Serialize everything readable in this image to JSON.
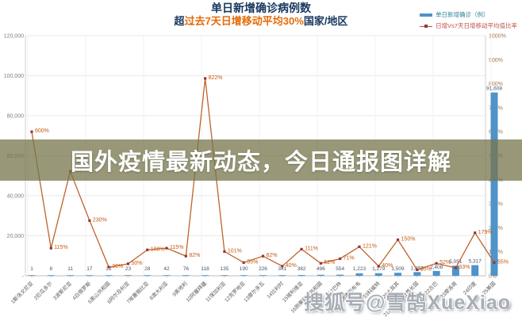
{
  "header": {
    "title": "单日新增确诊病例数",
    "subtitle_prefix": "超",
    "subtitle_highlight": "过去7天日增移动平均30%",
    "subtitle_suffix": "国家/地区"
  },
  "legend": {
    "bar_series_label": "单日新增确诊（例）",
    "line_series_label": "日增Vs7天日增移动平均值比率"
  },
  "overlay_banner": "国外疫情最新动态，今日通报图详解",
  "watermark": "搜狐号@雪鹄XueXiao",
  "colors": {
    "bar": "#4f93c8",
    "line": "#c0622b",
    "marker": "#963634",
    "pct_label": "#c55a11",
    "bar_label": "#44546a",
    "left_axis_label": "#7f7f7f",
    "right_axis_label": "#9c7a4a",
    "grid": "#e9e9e9",
    "axis": "#d0d0d0",
    "category_label": "#595959"
  },
  "chart_data": {
    "type": "combo-bar-line",
    "title": "单日新增确诊病例数",
    "subtitle": "超过去7天日增移动平均30%国家/地区",
    "legend_entries": [
      "单日新增确诊（例）",
      "日增Vs7天日增移动平均值比率"
    ],
    "left_axis": {
      "label_ticks": [
        "120,000",
        "100,000",
        "80,000",
        "60,000",
        "40,000",
        "20,000",
        "-"
      ],
      "min": 0,
      "max": 120000
    },
    "right_axis": {
      "label_ticks": [
        "1000%",
        "900%",
        "800%",
        "700%",
        "600%",
        "500%",
        "400%",
        "300%",
        "200%",
        "100%",
        "0%"
      ],
      "min": 0,
      "max": 1000
    },
    "grid": "horizontal-and-faint-vertical",
    "legend_position": "top-right",
    "categories": [
      "1斯洛文尼亚",
      "2厄瓜多尔",
      "3波斯尼亚",
      "4白俄罗斯",
      "5黑山共和国",
      "6阿尔及利亚",
      "7埃塞俄比亚",
      "8澳大利亚",
      "9奥地利",
      "10阿塞拜疆",
      "11保加利亚",
      "12克罗地亚",
      "13摩尔多瓦",
      "14比利时",
      "15玻利维亚",
      "16刚果民主共和国",
      "17巴林",
      "18津巴布韦",
      "19科威特",
      "20土耳其",
      "21阿拉伯联合酋长国",
      "22古巴",
      "23摩洛哥",
      "24印度",
      "25美国"
    ],
    "series": [
      {
        "name": "单日新增确诊（例）",
        "type": "bar",
        "axis": "left",
        "values": [
          1,
          8,
          11,
          17,
          22,
          23,
          28,
          42,
          76,
          118,
          135,
          190,
          226,
          341,
          382,
          496,
          554,
          1223,
          1279,
          1509,
          1853,
          2408,
          5051,
          5317,
          91608
        ],
        "value_labels": [
          "1",
          "8",
          "11",
          "17",
          "22",
          "23",
          "28",
          "42",
          "76",
          "118",
          "135",
          "190",
          "226",
          "341",
          "382",
          "496",
          "554",
          "1,223",
          "1,279",
          "1,509",
          "1,853",
          "2,408",
          "5,051",
          "5,317",
          "91,608"
        ]
      },
      {
        "name": "日增Vs7天日增移动平均值比率",
        "type": "line",
        "axis": "right",
        "values_pct": [
          600,
          115,
          435,
          230,
          36,
          50,
          108,
          115,
          82,
          822,
          101,
          55,
          82,
          40,
          111,
          52,
          71,
          121,
          40,
          150,
          25,
          52,
          33,
          179,
          55
        ],
        "point_labels": [
          "600%",
          "115%",
          "435%",
          "230%",
          "36%",
          "50%",
          "108%",
          "115%",
          "82%",
          "822%",
          "101%",
          "55%",
          "82%",
          "40%",
          "111%",
          "52%",
          "71%",
          "121%",
          "40%",
          "150%",
          "25%",
          "52%",
          "33%",
          "179%",
          "55%"
        ]
      }
    ]
  }
}
